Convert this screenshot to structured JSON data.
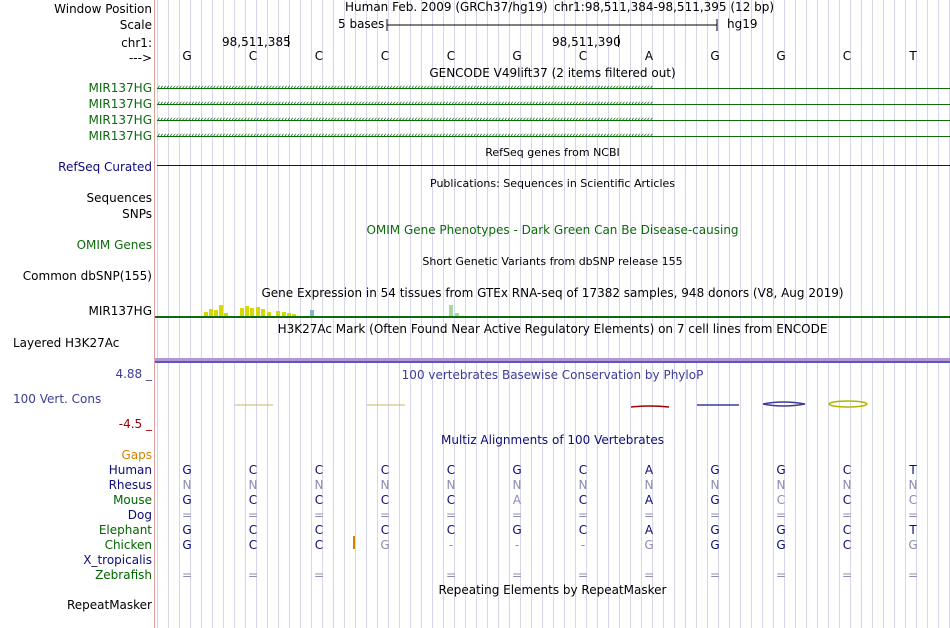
{
  "labels": {
    "window_position": "Window Position",
    "scale": "Scale",
    "chrom": "chr1:",
    "arrow": "--->",
    "gene_tracks": [
      "MIR137HG",
      "MIR137HG",
      "MIR137HG",
      "MIR137HG"
    ],
    "refseq": "RefSeq Curated",
    "sequences": "Sequences",
    "snps": "SNPs",
    "omim": "OMIM Genes",
    "dbsnp": "Common dbSNP(155)",
    "gtex": "MIR137HG",
    "h3k27ac": "Layered H3K27Ac",
    "phylop_max": "4.88 _",
    "phylop": "100 Vert. Cons",
    "phylop_min": "-4.5 _",
    "gaps": "Gaps"
  },
  "header": {
    "assembly": "Human Feb. 2009 (GRCh37/hg19)",
    "position": "chr1:98,511,384-98,511,395 (12 bp)",
    "scale_text": "5 bases",
    "scale_db": "hg19",
    "coord1": "98,511,385",
    "coord2": "98,511,390"
  },
  "sequence": [
    "G",
    "C",
    "C",
    "C",
    "C",
    "G",
    "C",
    "A",
    "G",
    "G",
    "C",
    "T"
  ],
  "track_titles": {
    "gencode": "GENCODE V49lift37 (2 items filtered out)",
    "refseq": "RefSeq genes from NCBI",
    "publications": "Publications: Sequences in Scientific Articles",
    "omim": "OMIM Gene Phenotypes - Dark Green Can Be Disease-causing",
    "dbsnp": "Short Genetic Variants from dbSNP release 155",
    "gtex": "Gene Expression in 54 tissues from GTEx RNA-seq of 17382 samples, 948 donors (V8, Aug 2019)",
    "h3k27ac": "H3K27Ac Mark (Often Found Near Active Regulatory Elements) on 7 cell lines from ENCODE",
    "phylop": "100 vertebrates Basewise Conservation by PhyloP",
    "multiz": "Multiz Alignments of 100 Vertebrates",
    "repeatmasker": "Repeating Elements by RepeatMasker"
  },
  "colors": {
    "gene_green": "#0c6b0c",
    "refseq_navy": "#0c0c78",
    "species_navy": "#0c0c78",
    "species_green": "#006400",
    "gaps_orange": "#d28200",
    "phylop_blue": "#3c3c96",
    "phylop_red": "#a00000"
  },
  "multiz": {
    "species": [
      {
        "name": "Human",
        "color": "navy",
        "bases": [
          "G",
          "C",
          "C",
          "C",
          "C",
          "G",
          "C",
          "A",
          "G",
          "G",
          "C",
          "T"
        ]
      },
      {
        "name": "Rhesus",
        "color": "navy",
        "bases": [
          "N",
          "N",
          "N",
          "N",
          "N",
          "N",
          "N",
          "N",
          "N",
          "N",
          "N",
          "N"
        ]
      },
      {
        "name": "Mouse",
        "color": "green",
        "bases": [
          "G",
          "C",
          "C",
          "C",
          "C",
          "A",
          "C",
          "A",
          "G",
          "C",
          "C",
          "C"
        ]
      },
      {
        "name": "Dog",
        "color": "navy",
        "bases": [
          "=",
          "=",
          "=",
          "=",
          "=",
          "=",
          "=",
          "=",
          "=",
          "=",
          "=",
          "="
        ]
      },
      {
        "name": "Elephant",
        "color": "green",
        "bases": [
          "G",
          "C",
          "C",
          "C",
          "C",
          "G",
          "C",
          "A",
          "G",
          "G",
          "C",
          "T"
        ]
      },
      {
        "name": "Chicken",
        "color": "green",
        "bases": [
          "G",
          "C",
          "C",
          "G",
          "-",
          "-",
          "-",
          "G",
          "G",
          "G",
          "C",
          "G"
        ]
      },
      {
        "name": "X_tropicalis",
        "color": "navy",
        "bases": [
          "",
          "",
          "",
          "",
          "",
          "",
          "",
          "",
          "",
          "",
          "",
          ""
        ]
      },
      {
        "name": "Zebrafish",
        "color": "green",
        "bases": [
          "=",
          "=",
          "=",
          "",
          "=",
          "=",
          "=",
          "=",
          "=",
          "=",
          "=",
          "="
        ]
      }
    ]
  },
  "repeatmasker_label": "RepeatMasker"
}
